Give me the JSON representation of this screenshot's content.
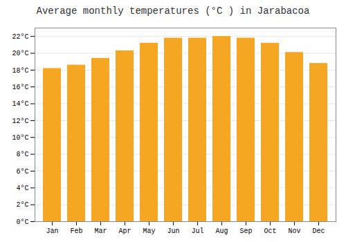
{
  "chart_data": {
    "type": "bar",
    "title": "Average monthly temperatures (°C ) in Jarabacoa",
    "categories": [
      "Jan",
      "Feb",
      "Mar",
      "Apr",
      "May",
      "Jun",
      "Jul",
      "Aug",
      "Sep",
      "Oct",
      "Nov",
      "Dec"
    ],
    "values": [
      18.2,
      18.6,
      19.4,
      20.3,
      21.2,
      21.8,
      21.8,
      22.0,
      21.8,
      21.2,
      20.1,
      18.8
    ],
    "color": "#F5A623",
    "ylim": [
      0,
      23
    ],
    "yticks": [
      {
        "value": 0,
        "label": "0°C"
      },
      {
        "value": 2,
        "label": "2°C"
      },
      {
        "value": 4,
        "label": "4°C"
      },
      {
        "value": 6,
        "label": "6°C"
      },
      {
        "value": 8,
        "label": "8°C"
      },
      {
        "value": 10,
        "label": "10°C"
      },
      {
        "value": 12,
        "label": "12°C"
      },
      {
        "value": 14,
        "label": "14°C"
      },
      {
        "value": 16,
        "label": "16°C"
      },
      {
        "value": 18,
        "label": "18°C"
      },
      {
        "value": 20,
        "label": "20°C"
      },
      {
        "value": 22,
        "label": "22°C"
      }
    ],
    "grid": true
  }
}
